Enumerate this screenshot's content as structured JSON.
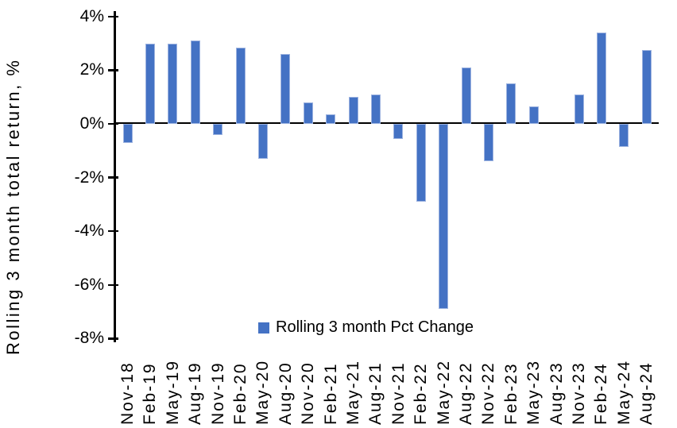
{
  "chart_data": {
    "type": "bar",
    "title": "",
    "xlabel": "",
    "ylabel": "Rolling 3 month total return, %",
    "ylim": [
      -8,
      4
    ],
    "yticks": [
      4,
      2,
      0,
      -2,
      -4,
      -6,
      -8
    ],
    "ytick_labels": [
      "4%",
      "2%",
      "0%",
      "-2%",
      "-4%",
      "-6%",
      "-8%"
    ],
    "grid": false,
    "legend": [
      "Rolling 3 month Pct Change"
    ],
    "legend_position": "bottom-center",
    "categories": [
      "Nov-18",
      "Feb-19",
      "May-19",
      "Aug-19",
      "Nov-19",
      "Feb-20",
      "May-20",
      "Aug-20",
      "Nov-20",
      "Feb-21",
      "May-21",
      "Aug-21",
      "Nov-21",
      "Feb-22",
      "May-22",
      "Aug-22",
      "Nov-22",
      "Feb-23",
      "May-23",
      "Aug-23",
      "Nov-23",
      "Feb-24",
      "May-24",
      "Aug-24"
    ],
    "series": [
      {
        "name": "Rolling 3 month Pct Change",
        "values": [
          -0.7,
          3.0,
          3.0,
          3.1,
          -0.4,
          2.85,
          -1.3,
          2.6,
          0.8,
          0.35,
          1.0,
          1.1,
          -0.55,
          -2.9,
          -6.9,
          2.1,
          -1.4,
          1.5,
          0.65,
          0.0,
          1.1,
          3.4,
          -0.85,
          2.75
        ]
      }
    ],
    "colors": {
      "bar": "#4472C4",
      "bar_edge": "#9DB3E0",
      "axis": "#000000",
      "text": "#000000",
      "background": "#FFFFFF"
    }
  }
}
